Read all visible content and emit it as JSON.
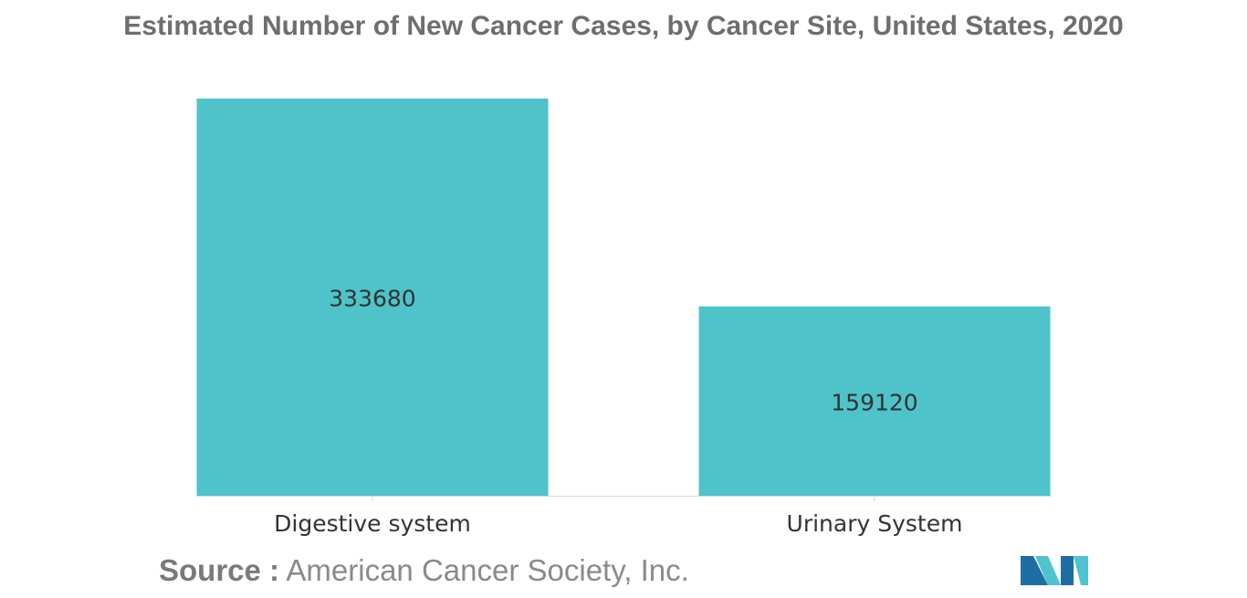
{
  "chart_title": "Estimated Number of New Cancer Cases, by Cancer Site, United States, 2020",
  "source": {
    "label": "Source :",
    "text": "American Cancer Society, Inc."
  },
  "logo": {
    "icon": "mordor-intelligence-logo-icon",
    "colors": [
      "#1d6fa3",
      "#4fc3d0"
    ]
  },
  "colors": {
    "bar": "#4fc3ca",
    "axis": "#d9d9d9",
    "title": "#6e6e6e",
    "label": "#333333"
  },
  "chart_data": {
    "type": "bar",
    "title": "Estimated Number of New Cancer Cases, by Cancer Site, United States, 2020",
    "categories": [
      "Digestive system",
      "Urinary System"
    ],
    "values": [
      333680,
      159120
    ],
    "data_labels": [
      "333680",
      "159120"
    ],
    "ylim": [
      0,
      333680
    ],
    "grid": false,
    "legend": "none",
    "xlabel": "",
    "ylabel": ""
  }
}
